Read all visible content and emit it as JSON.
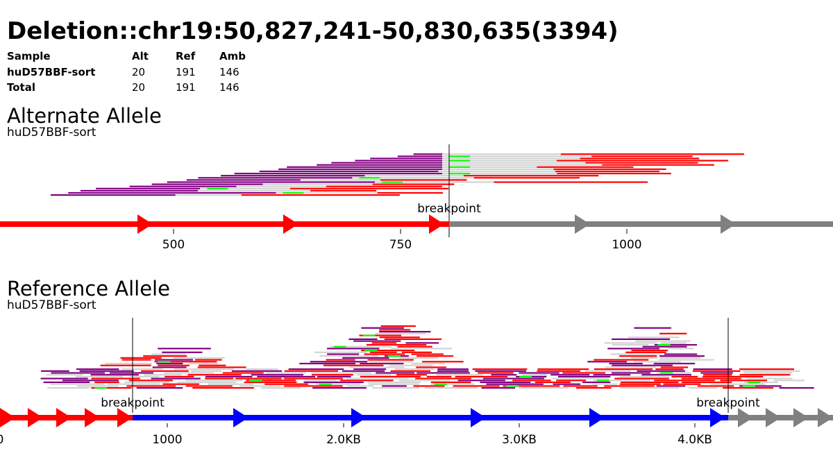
{
  "title": "Deletion::chr19:50,827,241-50,830,635(3394)",
  "summary": {
    "headers": [
      "Sample",
      "Alt",
      "Ref",
      "Amb"
    ],
    "rows": [
      [
        "huD57BBF-sort",
        "20",
        "191",
        "146"
      ],
      [
        "Total",
        "20",
        "191",
        "146"
      ]
    ]
  },
  "colors": {
    "ref_read": "#ff0000",
    "alt_read": "#800080",
    "neutral_read": "#d3d3d3",
    "mismatch": "#00ff00",
    "left_segment": "#ff0000",
    "deleted_segment": "#0000ff",
    "right_segment": "#808080",
    "breakpoint_line": "#000000"
  },
  "alternate": {
    "title": "Alternate Allele",
    "sample": "huD57BBF-sort",
    "breakpoint_label": "breakpoint",
    "axis": {
      "ticks": [
        "500",
        "750",
        "1000"
      ]
    },
    "read_count": 20
  },
  "reference": {
    "title": "Reference Allele",
    "sample": "huD57BBF-sort",
    "breakpoint_labels": [
      "breakpoint",
      "breakpoint"
    ],
    "axis": {
      "ticks": [
        "0",
        "1000",
        "2.0KB",
        "3.0KB",
        "4.0KB"
      ]
    },
    "read_count": 191
  }
}
